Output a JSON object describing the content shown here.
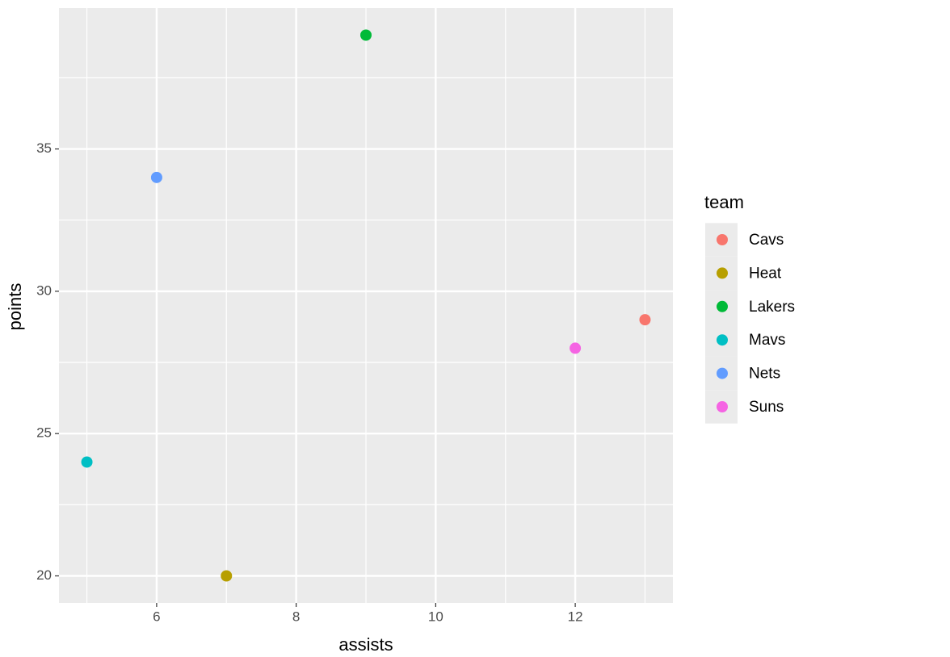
{
  "chart_data": {
    "type": "scatter",
    "x_label": "assists",
    "y_label": "points",
    "legend_title": "team",
    "legend": "right",
    "grid": true,
    "xlim": [
      4.6,
      13.4
    ],
    "ylim": [
      19.05,
      39.95
    ],
    "xticks": [
      6,
      8,
      10,
      12
    ],
    "yticks": [
      20,
      25,
      30,
      35
    ],
    "x_minor_grid": [
      5,
      7,
      9,
      11,
      13
    ],
    "y_minor_grid": [
      22.5,
      27.5,
      32.5,
      37.5
    ],
    "series": [
      {
        "name": "Cavs",
        "color": "#F8766D",
        "x": [
          13
        ],
        "values": [
          29
        ]
      },
      {
        "name": "Heat",
        "color": "#B79F00",
        "x": [
          7
        ],
        "values": [
          20
        ]
      },
      {
        "name": "Lakers",
        "color": "#00BA38",
        "x": [
          9
        ],
        "values": [
          39
        ]
      },
      {
        "name": "Mavs",
        "color": "#00BFC4",
        "x": [
          5
        ],
        "values": [
          24
        ]
      },
      {
        "name": "Nets",
        "color": "#619CFF",
        "x": [
          6
        ],
        "values": [
          34
        ]
      },
      {
        "name": "Suns",
        "color": "#F564E3",
        "x": [
          12
        ],
        "values": [
          28
        ]
      }
    ]
  }
}
